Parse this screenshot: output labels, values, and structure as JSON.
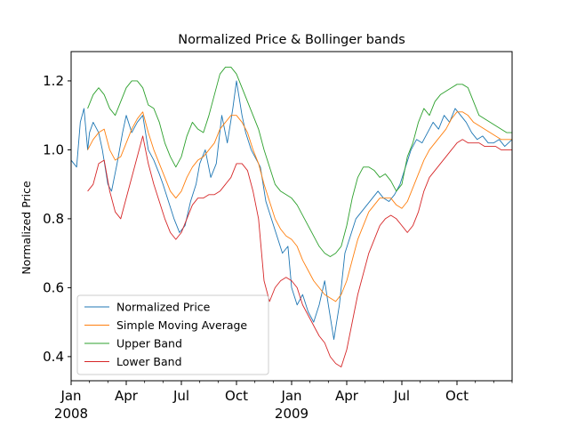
{
  "chart_data": {
    "type": "line",
    "title": "Normalized Price & Bollinger bands",
    "xlabel": "",
    "ylabel": "Normalized Price",
    "ylim": [
      0.33,
      1.285
    ],
    "x_range_months": [
      "2008-01",
      "2009-12"
    ],
    "y_ticks": [
      "0.4",
      "0.6",
      "0.8",
      "1.0",
      "1.2"
    ],
    "y_tick_values": [
      0.4,
      0.6,
      0.8,
      1.0,
      1.2
    ],
    "x_ticks": [
      {
        "label": "Jan",
        "year": "2008",
        "month_index": 0
      },
      {
        "label": "Apr",
        "year": "",
        "month_index": 3
      },
      {
        "label": "Jul",
        "year": "",
        "month_index": 6
      },
      {
        "label": "Oct",
        "year": "",
        "month_index": 9
      },
      {
        "label": "Jan",
        "year": "2009",
        "month_index": 12
      },
      {
        "label": "Apr",
        "year": "",
        "month_index": 15
      },
      {
        "label": "Jul",
        "year": "",
        "month_index": 18
      },
      {
        "label": "Oct",
        "year": "",
        "month_index": 21
      }
    ],
    "grid": false,
    "legend_position": "lower-left",
    "series": [
      {
        "name": "Normalized Price",
        "color": "#1f77b4",
        "x": [
          0,
          0.3,
          0.5,
          0.7,
          0.9,
          1.0,
          1.2,
          1.5,
          1.7,
          2.0,
          2.2,
          2.5,
          2.8,
          3.0,
          3.3,
          3.6,
          3.9,
          4.2,
          4.5,
          4.8,
          5.0,
          5.3,
          5.6,
          5.9,
          6.2,
          6.5,
          6.8,
          7.0,
          7.3,
          7.6,
          7.9,
          8.2,
          8.5,
          8.8,
          9.0,
          9.3,
          9.5,
          9.8,
          10.0,
          10.3,
          10.6,
          10.9,
          11.2,
          11.5,
          11.8,
          12.0,
          12.3,
          12.6,
          12.9,
          13.2,
          13.5,
          13.8,
          14.0,
          14.3,
          14.6,
          14.9,
          15.2,
          15.5,
          15.8,
          16.1,
          16.4,
          16.7,
          17.0,
          17.3,
          17.6,
          17.9,
          18.2,
          18.5,
          18.8,
          19.1,
          19.4,
          19.7,
          20.0,
          20.3,
          20.6,
          20.9,
          21.2,
          21.5,
          21.8,
          22.1,
          22.4,
          22.7,
          23.0,
          23.3,
          23.6,
          24.0
        ],
        "values": [
          0.97,
          0.95,
          1.08,
          1.12,
          1.0,
          1.05,
          1.08,
          1.05,
          1.0,
          0.9,
          0.88,
          0.96,
          1.05,
          1.1,
          1.05,
          1.08,
          1.1,
          1.0,
          0.97,
          0.93,
          0.9,
          0.85,
          0.8,
          0.76,
          0.78,
          0.85,
          0.9,
          0.96,
          1.0,
          0.92,
          0.96,
          1.1,
          1.02,
          1.12,
          1.2,
          1.1,
          1.05,
          1.0,
          0.98,
          0.95,
          0.85,
          0.8,
          0.75,
          0.7,
          0.72,
          0.6,
          0.55,
          0.58,
          0.53,
          0.5,
          0.55,
          0.62,
          0.55,
          0.45,
          0.55,
          0.7,
          0.75,
          0.8,
          0.82,
          0.84,
          0.86,
          0.88,
          0.86,
          0.85,
          0.87,
          0.9,
          0.95,
          1.0,
          1.03,
          1.02,
          1.05,
          1.08,
          1.06,
          1.1,
          1.08,
          1.12,
          1.1,
          1.08,
          1.05,
          1.03,
          1.04,
          1.02,
          1.02,
          1.03,
          1.01,
          1.03
        ]
      },
      {
        "name": "Simple Moving Average",
        "color": "#ff7f0e",
        "x": [
          0.9,
          1.2,
          1.5,
          1.8,
          2.1,
          2.4,
          2.7,
          3.0,
          3.3,
          3.6,
          3.9,
          4.2,
          4.5,
          4.8,
          5.1,
          5.4,
          5.7,
          6.0,
          6.3,
          6.6,
          6.9,
          7.2,
          7.5,
          7.8,
          8.1,
          8.4,
          8.7,
          9.0,
          9.3,
          9.6,
          9.9,
          10.2,
          10.5,
          10.8,
          11.1,
          11.4,
          11.7,
          12.0,
          12.3,
          12.6,
          12.9,
          13.2,
          13.5,
          13.8,
          14.1,
          14.4,
          14.7,
          15.0,
          15.3,
          15.6,
          15.9,
          16.2,
          16.5,
          16.8,
          17.1,
          17.4,
          17.7,
          18.0,
          18.3,
          18.6,
          18.9,
          19.2,
          19.5,
          19.8,
          20.1,
          20.4,
          20.7,
          21.0,
          21.3,
          21.6,
          21.9,
          22.2,
          22.5,
          22.8,
          23.1,
          23.4,
          23.7,
          24.0
        ],
        "values": [
          1.0,
          1.03,
          1.05,
          1.06,
          1.0,
          0.97,
          0.98,
          1.02,
          1.06,
          1.09,
          1.11,
          1.05,
          1.0,
          0.96,
          0.92,
          0.88,
          0.86,
          0.88,
          0.92,
          0.95,
          0.97,
          0.98,
          1.0,
          1.02,
          1.06,
          1.08,
          1.1,
          1.1,
          1.08,
          1.05,
          1.0,
          0.96,
          0.9,
          0.85,
          0.8,
          0.77,
          0.75,
          0.74,
          0.72,
          0.68,
          0.65,
          0.62,
          0.6,
          0.58,
          0.57,
          0.56,
          0.58,
          0.62,
          0.68,
          0.74,
          0.78,
          0.82,
          0.84,
          0.86,
          0.86,
          0.86,
          0.84,
          0.83,
          0.85,
          0.89,
          0.93,
          0.97,
          1.0,
          1.02,
          1.04,
          1.06,
          1.09,
          1.11,
          1.11,
          1.1,
          1.08,
          1.07,
          1.06,
          1.05,
          1.04,
          1.03,
          1.03,
          1.03
        ]
      },
      {
        "name": "Upper Band",
        "color": "#2ca02c",
        "x": [
          0.9,
          1.2,
          1.5,
          1.8,
          2.1,
          2.4,
          2.7,
          3.0,
          3.3,
          3.6,
          3.9,
          4.2,
          4.5,
          4.8,
          5.1,
          5.4,
          5.7,
          6.0,
          6.3,
          6.6,
          6.9,
          7.2,
          7.5,
          7.8,
          8.1,
          8.4,
          8.7,
          9.0,
          9.3,
          9.6,
          9.9,
          10.2,
          10.5,
          10.8,
          11.1,
          11.4,
          11.7,
          12.0,
          12.3,
          12.6,
          12.9,
          13.2,
          13.5,
          13.8,
          14.1,
          14.4,
          14.7,
          15.0,
          15.3,
          15.6,
          15.9,
          16.2,
          16.5,
          16.8,
          17.1,
          17.4,
          17.7,
          18.0,
          18.3,
          18.6,
          18.9,
          19.2,
          19.5,
          19.8,
          20.1,
          20.4,
          20.7,
          21.0,
          21.3,
          21.6,
          21.9,
          22.2,
          22.5,
          22.8,
          23.1,
          23.4,
          23.7,
          24.0
        ],
        "values": [
          1.12,
          1.16,
          1.18,
          1.16,
          1.12,
          1.1,
          1.14,
          1.18,
          1.2,
          1.2,
          1.18,
          1.13,
          1.12,
          1.08,
          1.02,
          0.98,
          0.95,
          0.98,
          1.04,
          1.08,
          1.06,
          1.05,
          1.1,
          1.16,
          1.22,
          1.24,
          1.24,
          1.22,
          1.18,
          1.14,
          1.1,
          1.06,
          1.0,
          0.95,
          0.9,
          0.88,
          0.87,
          0.86,
          0.84,
          0.81,
          0.78,
          0.75,
          0.72,
          0.7,
          0.69,
          0.7,
          0.72,
          0.78,
          0.86,
          0.92,
          0.95,
          0.95,
          0.94,
          0.92,
          0.93,
          0.91,
          0.88,
          0.9,
          0.98,
          1.02,
          1.08,
          1.12,
          1.1,
          1.14,
          1.16,
          1.17,
          1.18,
          1.19,
          1.19,
          1.18,
          1.14,
          1.1,
          1.09,
          1.08,
          1.07,
          1.06,
          1.05,
          1.05
        ]
      },
      {
        "name": "Lower Band",
        "color": "#d62728",
        "x": [
          0.9,
          1.2,
          1.5,
          1.8,
          2.1,
          2.4,
          2.7,
          3.0,
          3.3,
          3.6,
          3.9,
          4.2,
          4.5,
          4.8,
          5.1,
          5.4,
          5.7,
          6.0,
          6.3,
          6.6,
          6.9,
          7.2,
          7.5,
          7.8,
          8.1,
          8.4,
          8.7,
          9.0,
          9.3,
          9.6,
          9.9,
          10.2,
          10.5,
          10.8,
          11.1,
          11.4,
          11.7,
          12.0,
          12.3,
          12.6,
          12.9,
          13.2,
          13.5,
          13.8,
          14.1,
          14.4,
          14.7,
          15.0,
          15.3,
          15.6,
          15.9,
          16.2,
          16.5,
          16.8,
          17.1,
          17.4,
          17.7,
          18.0,
          18.3,
          18.6,
          18.9,
          19.2,
          19.5,
          19.8,
          20.1,
          20.4,
          20.7,
          21.0,
          21.3,
          21.6,
          21.9,
          22.2,
          22.5,
          22.8,
          23.1,
          23.4,
          23.7,
          24.0
        ],
        "values": [
          0.88,
          0.9,
          0.96,
          0.97,
          0.88,
          0.82,
          0.8,
          0.86,
          0.92,
          0.98,
          1.04,
          0.96,
          0.9,
          0.85,
          0.8,
          0.76,
          0.74,
          0.76,
          0.8,
          0.84,
          0.86,
          0.86,
          0.87,
          0.87,
          0.88,
          0.9,
          0.92,
          0.96,
          0.96,
          0.94,
          0.88,
          0.8,
          0.62,
          0.56,
          0.6,
          0.62,
          0.63,
          0.62,
          0.6,
          0.55,
          0.52,
          0.49,
          0.46,
          0.44,
          0.4,
          0.38,
          0.37,
          0.42,
          0.5,
          0.58,
          0.64,
          0.7,
          0.74,
          0.78,
          0.8,
          0.81,
          0.8,
          0.78,
          0.76,
          0.78,
          0.82,
          0.88,
          0.92,
          0.94,
          0.96,
          0.98,
          1.0,
          1.02,
          1.03,
          1.02,
          1.02,
          1.02,
          1.01,
          1.01,
          1.01,
          1.0,
          1.0,
          1.0
        ]
      }
    ]
  }
}
